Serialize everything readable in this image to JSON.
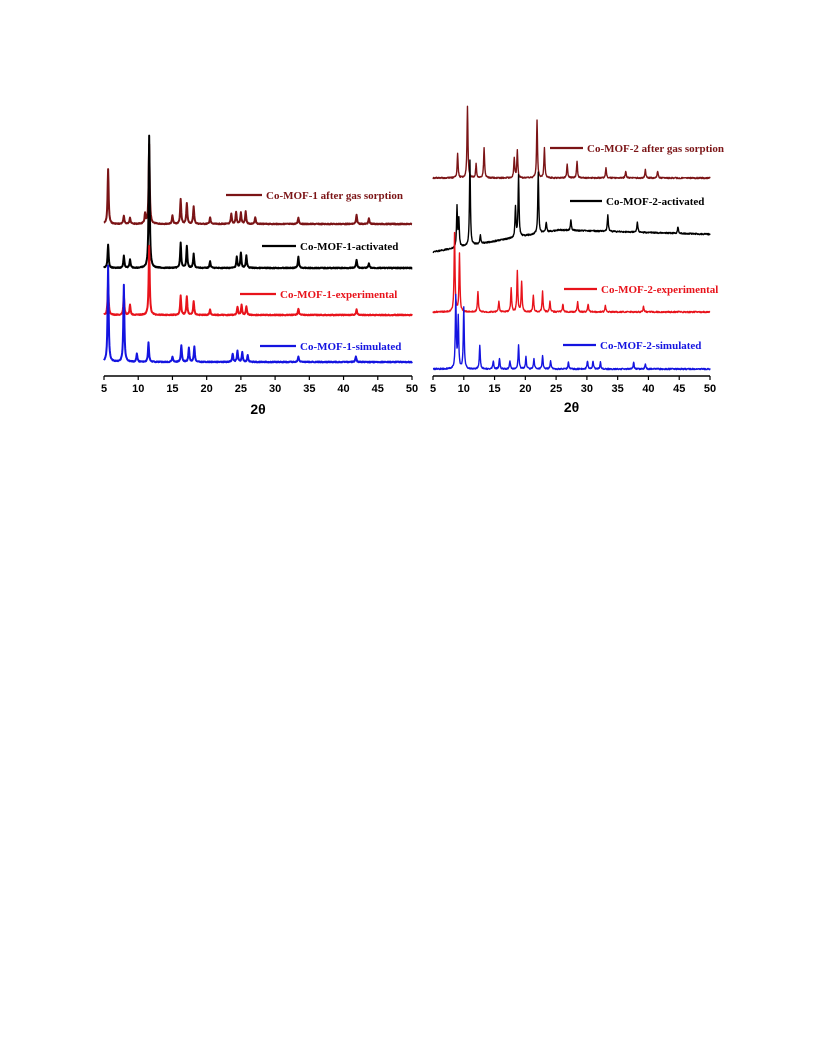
{
  "chart_data": [
    {
      "type": "line",
      "xlabel": "2θ",
      "xlim": [
        5,
        50
      ],
      "xticks": [
        "5",
        "10",
        "15",
        "20",
        "25",
        "30",
        "35",
        "40",
        "45",
        "50"
      ],
      "legend_placement": "right of each trace",
      "series": [
        {
          "name": "Co-MOF-1 after gas sorption",
          "color": "#7b1416",
          "peaks": [
            [
              5.6,
              1.0
            ],
            [
              7.9,
              0.15
            ],
            [
              8.8,
              0.12
            ],
            [
              11.0,
              0.18
            ],
            [
              11.6,
              1.45
            ],
            [
              15.0,
              0.15
            ],
            [
              16.2,
              0.45
            ],
            [
              17.1,
              0.38
            ],
            [
              18.1,
              0.32
            ],
            [
              20.5,
              0.12
            ],
            [
              23.6,
              0.18
            ],
            [
              24.3,
              0.22
            ],
            [
              25.0,
              0.2
            ],
            [
              25.7,
              0.22
            ],
            [
              27.1,
              0.12
            ],
            [
              33.4,
              0.12
            ],
            [
              41.9,
              0.16
            ],
            [
              43.7,
              0.1
            ]
          ]
        },
        {
          "name": "Co-MOF-1-activated",
          "color": "#000000",
          "peaks": [
            [
              5.6,
              0.42
            ],
            [
              7.9,
              0.22
            ],
            [
              8.8,
              0.15
            ],
            [
              11.6,
              2.4
            ],
            [
              16.2,
              0.45
            ],
            [
              17.1,
              0.4
            ],
            [
              18.1,
              0.25
            ],
            [
              20.5,
              0.12
            ],
            [
              24.4,
              0.2
            ],
            [
              25.0,
              0.28
            ],
            [
              25.8,
              0.22
            ],
            [
              33.4,
              0.2
            ],
            [
              41.9,
              0.15
            ],
            [
              43.7,
              0.08
            ]
          ]
        },
        {
          "name": "Co-MOF-1-experimental",
          "color": "#e8131b",
          "peaks": [
            [
              5.6,
              0.55
            ],
            [
              7.9,
              0.35
            ],
            [
              8.8,
              0.18
            ],
            [
              11.6,
              1.25
            ],
            [
              16.2,
              0.35
            ],
            [
              17.1,
              0.33
            ],
            [
              18.1,
              0.25
            ],
            [
              20.5,
              0.1
            ],
            [
              24.5,
              0.15
            ],
            [
              25.1,
              0.18
            ],
            [
              25.8,
              0.15
            ],
            [
              33.4,
              0.12
            ],
            [
              41.9,
              0.1
            ]
          ]
        },
        {
          "name": "Co-MOF-1-simulated",
          "color": "#1414e0",
          "peaks": [
            [
              5.6,
              1.75
            ],
            [
              7.9,
              1.4
            ],
            [
              9.8,
              0.15
            ],
            [
              11.5,
              0.35
            ],
            [
              15.0,
              0.1
            ],
            [
              16.3,
              0.3
            ],
            [
              17.4,
              0.25
            ],
            [
              18.2,
              0.28
            ],
            [
              23.8,
              0.15
            ],
            [
              24.5,
              0.2
            ],
            [
              25.2,
              0.18
            ],
            [
              26.0,
              0.12
            ],
            [
              33.4,
              0.1
            ],
            [
              41.8,
              0.1
            ]
          ]
        }
      ]
    },
    {
      "type": "line",
      "xlabel": "2θ",
      "xlim": [
        5,
        50
      ],
      "xticks": [
        "5",
        "10",
        "15",
        "20",
        "25",
        "30",
        "35",
        "40",
        "45",
        "50"
      ],
      "legend_placement": "right of each trace",
      "series": [
        {
          "name": "Co-MOF-2 after gas sorption",
          "color": "#7b1416",
          "peaks": [
            [
              9.0,
              0.35
            ],
            [
              10.6,
              1.05
            ],
            [
              12.0,
              0.2
            ],
            [
              13.3,
              0.45
            ],
            [
              18.2,
              0.3
            ],
            [
              18.7,
              0.4
            ],
            [
              21.9,
              0.85
            ],
            [
              23.1,
              0.45
            ],
            [
              26.8,
              0.2
            ],
            [
              28.4,
              0.25
            ],
            [
              33.1,
              0.15
            ],
            [
              36.3,
              0.1
            ],
            [
              39.5,
              0.12
            ],
            [
              41.5,
              0.1
            ]
          ]
        },
        {
          "name": "Co-MOF-2-activated",
          "color": "#000000",
          "peaks": [
            [
              8.9,
              0.6
            ],
            [
              9.2,
              0.4
            ],
            [
              11.0,
              1.25
            ],
            [
              12.7,
              0.12
            ],
            [
              18.4,
              0.45
            ],
            [
              18.9,
              0.9
            ],
            [
              22.1,
              0.9
            ],
            [
              23.4,
              0.15
            ],
            [
              27.4,
              0.15
            ],
            [
              33.4,
              0.25
            ],
            [
              38.2,
              0.15
            ],
            [
              44.8,
              0.1
            ]
          ]
        },
        {
          "name": "Co-MOF-2-experimental",
          "color": "#e8131b",
          "peaks": [
            [
              8.5,
              1.15
            ],
            [
              9.3,
              0.85
            ],
            [
              12.3,
              0.3
            ],
            [
              15.7,
              0.15
            ],
            [
              17.7,
              0.35
            ],
            [
              18.7,
              0.6
            ],
            [
              19.4,
              0.45
            ],
            [
              21.3,
              0.25
            ],
            [
              22.8,
              0.3
            ],
            [
              24.0,
              0.15
            ],
            [
              26.1,
              0.12
            ],
            [
              28.5,
              0.15
            ],
            [
              30.2,
              0.12
            ],
            [
              33.0,
              0.1
            ],
            [
              39.2,
              0.08
            ]
          ]
        },
        {
          "name": "Co-MOF-2-simulated",
          "color": "#1414e0",
          "peaks": [
            [
              8.7,
              1.05
            ],
            [
              9.1,
              0.75
            ],
            [
              10.0,
              0.9
            ],
            [
              12.6,
              0.35
            ],
            [
              14.8,
              0.12
            ],
            [
              15.8,
              0.15
            ],
            [
              17.5,
              0.12
            ],
            [
              18.9,
              0.35
            ],
            [
              20.1,
              0.18
            ],
            [
              21.4,
              0.15
            ],
            [
              22.8,
              0.2
            ],
            [
              24.1,
              0.12
            ],
            [
              27.0,
              0.1
            ],
            [
              30.1,
              0.12
            ],
            [
              31.0,
              0.12
            ],
            [
              32.2,
              0.1
            ],
            [
              37.6,
              0.1
            ],
            [
              39.5,
              0.08
            ]
          ]
        }
      ]
    }
  ]
}
